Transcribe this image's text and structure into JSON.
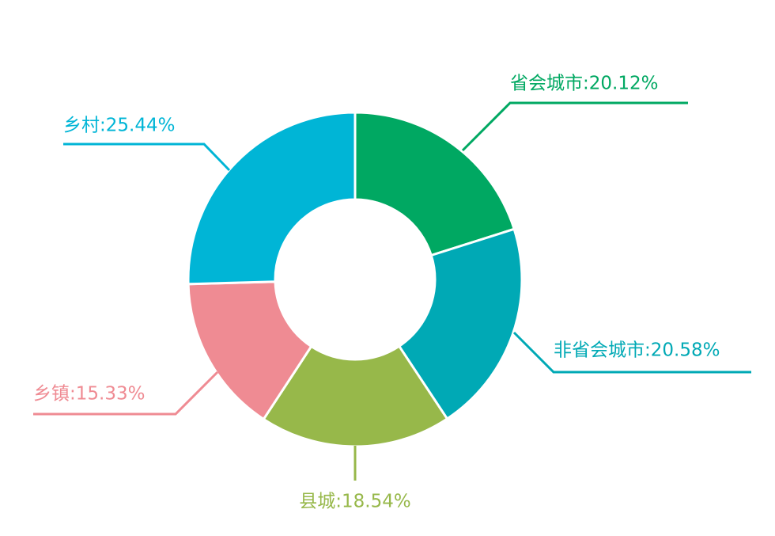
{
  "chart_data": {
    "type": "donut",
    "labels": [
      "省会城市:20.12%",
      "非省会城市:20.58%",
      "县城:18.54%",
      "乡镇:15.33%",
      "乡村:25.44%"
    ],
    "values": [
      20.12,
      20.58,
      18.54,
      15.33,
      25.44
    ],
    "colors": [
      "#00a862",
      "#00a9b5",
      "#97b84a",
      "#ef8b93",
      "#00b5d6"
    ]
  }
}
